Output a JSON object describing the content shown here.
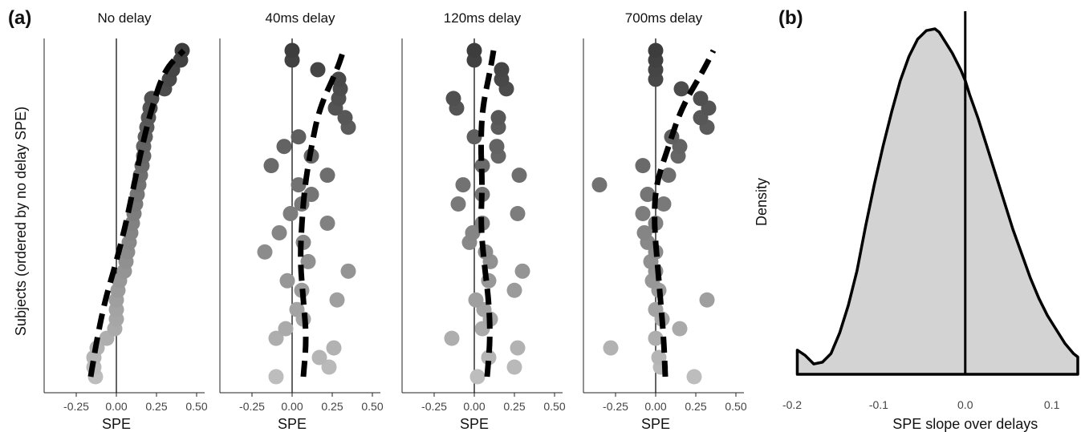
{
  "figure": {
    "label_a": "(a)",
    "label_b": "(b)"
  },
  "chart_data": [
    {
      "type": "scatter",
      "panel": "(a)",
      "ylabel": "Subjects (ordered by no delay SPE)",
      "xlabel": "SPE",
      "xlim": [
        -0.45,
        0.55
      ],
      "xticks": [
        -0.25,
        0.0,
        0.25,
        0.5
      ],
      "xtick_labels": [
        "-0.25",
        "0.00",
        "0.25",
        "0.50"
      ],
      "n_subjects": 35,
      "reference_line_x": 0,
      "point_color_gradient": [
        "#3d3d3d",
        "#bdbdbd"
      ],
      "trend_line_style": "black dashed",
      "facets": [
        {
          "title": "No delay",
          "x": [
            -0.13,
            -0.14,
            -0.14,
            -0.12,
            -0.06,
            -0.01,
            0.0,
            0.0,
            0.0,
            0.01,
            0.02,
            0.05,
            0.06,
            0.07,
            0.08,
            0.09,
            0.1,
            0.11,
            0.12,
            0.13,
            0.14,
            0.15,
            0.16,
            0.17,
            0.17,
            0.18,
            0.19,
            0.2,
            0.21,
            0.22,
            0.3,
            0.33,
            0.35,
            0.4,
            0.41
          ],
          "trend": [
            [
              35,
              -0.16
            ],
            [
              31,
              -0.12
            ],
            [
              27,
              -0.07
            ],
            [
              23,
              0.0
            ],
            [
              19,
              0.06
            ],
            [
              15,
              0.11
            ],
            [
              11,
              0.16
            ],
            [
              7,
              0.22
            ],
            [
              3,
              0.3
            ],
            [
              1,
              0.42
            ]
          ]
        },
        {
          "title": "40ms delay",
          "x": [
            -0.1,
            0.23,
            0.17,
            0.26,
            -0.1,
            -0.04,
            0.07,
            0.03,
            0.28,
            0.06,
            -0.03,
            0.35,
            0.1,
            -0.17,
            0.07,
            -0.08,
            0.22,
            -0.01,
            0.06,
            0.12,
            0.04,
            0.22,
            -0.13,
            0.12,
            -0.05,
            0.04,
            0.35,
            0.33,
            0.27,
            0.29,
            0.3,
            0.29,
            0.16,
            0.0,
            0.0
          ],
          "trend": [
            [
              35,
              0.07
            ],
            [
              31,
              0.09
            ],
            [
              27,
              0.07
            ],
            [
              23,
              0.05
            ],
            [
              19,
              0.06
            ],
            [
              15,
              0.08
            ],
            [
              11,
              0.12
            ],
            [
              7,
              0.17
            ],
            [
              3,
              0.28
            ],
            [
              1,
              0.32
            ]
          ]
        },
        {
          "title": "120ms delay",
          "x": [
            0.02,
            0.25,
            0.09,
            0.27,
            -0.14,
            0.05,
            0.1,
            0.06,
            0.01,
            0.25,
            0.09,
            0.3,
            0.1,
            0.07,
            -0.03,
            -0.01,
            0.05,
            0.27,
            -0.1,
            0.05,
            -0.07,
            0.28,
            0.05,
            0.15,
            0.14,
            0.0,
            0.15,
            0.15,
            -0.11,
            -0.13,
            0.2,
            0.17,
            0.17,
            0.0,
            0.0
          ],
          "trend": [
            [
              35,
              0.08
            ],
            [
              31,
              0.1
            ],
            [
              27,
              0.09
            ],
            [
              23,
              0.06
            ],
            [
              19,
              0.04
            ],
            [
              15,
              0.05
            ],
            [
              11,
              0.04
            ],
            [
              7,
              0.05
            ],
            [
              3,
              0.1
            ],
            [
              1,
              0.12
            ]
          ]
        },
        {
          "title": "700ms delay",
          "x": [
            0.24,
            0.03,
            0.02,
            -0.28,
            0.0,
            0.15,
            0.04,
            0.0,
            0.32,
            0.02,
            -0.02,
            0.0,
            -0.03,
            0.0,
            -0.05,
            -0.07,
            0.0,
            -0.08,
            0.05,
            -0.05,
            -0.35,
            0.08,
            -0.08,
            0.14,
            0.15,
            0.1,
            0.32,
            0.28,
            0.33,
            0.28,
            0.16,
            0.0,
            0.0,
            0.0,
            0.0
          ],
          "trend": [
            [
              35,
              0.06
            ],
            [
              31,
              0.05
            ],
            [
              27,
              0.03
            ],
            [
              23,
              0.01
            ],
            [
              19,
              -0.01
            ],
            [
              15,
              0.0
            ],
            [
              11,
              0.08
            ],
            [
              7,
              0.16
            ],
            [
              3,
              0.3
            ],
            [
              1,
              0.36
            ]
          ]
        }
      ]
    },
    {
      "type": "area",
      "panel": "(b)",
      "xlabel": "SPE slope over delays",
      "ylabel": "Density",
      "xlim": [
        -0.2,
        0.13
      ],
      "xticks": [
        -0.2,
        -0.1,
        0.0,
        0.1
      ],
      "xtick_labels": [
        "-0.2",
        "-0.1",
        "0.0",
        "0.1"
      ],
      "reference_line_x": 0,
      "fill_color": "#d3d3d3",
      "density_x": [
        -0.194,
        -0.185,
        -0.175,
        -0.165,
        -0.155,
        -0.145,
        -0.135,
        -0.125,
        -0.115,
        -0.105,
        -0.095,
        -0.085,
        -0.075,
        -0.065,
        -0.055,
        -0.045,
        -0.035,
        -0.03,
        -0.025,
        -0.015,
        -0.005,
        0.0,
        0.005,
        0.015,
        0.025,
        0.035,
        0.045,
        0.055,
        0.065,
        0.075,
        0.085,
        0.095,
        0.105,
        0.115,
        0.125,
        0.13
      ],
      "density_y": [
        0.07,
        0.055,
        0.03,
        0.035,
        0.06,
        0.12,
        0.2,
        0.3,
        0.43,
        0.55,
        0.66,
        0.76,
        0.85,
        0.92,
        0.97,
        0.995,
        1.0,
        0.99,
        0.97,
        0.93,
        0.88,
        0.85,
        0.81,
        0.74,
        0.66,
        0.58,
        0.5,
        0.42,
        0.35,
        0.28,
        0.22,
        0.17,
        0.13,
        0.09,
        0.06,
        0.05
      ]
    }
  ]
}
